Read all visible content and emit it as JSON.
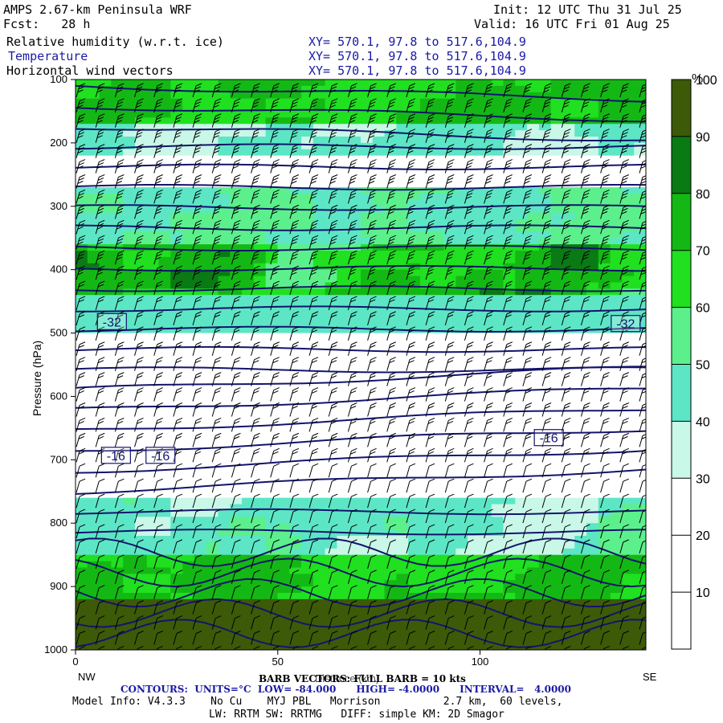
{
  "header": {
    "model": "AMPS 2.67-km Peninsula WRF",
    "fcst": "Fcst:   28 h",
    "init": "Init: 12 UTC Thu 31 Jul 25",
    "valid": "Valid: 16 UTC Fri 01 Aug 25",
    "fields": [
      {
        "label": "Relative humidity (w.r.t. ice)",
        "xy": "XY= 570.1, 97.8 to 517.6,104.9"
      },
      {
        "label": "Temperature",
        "xy": "XY= 570.1, 97.8 to 517.6,104.9"
      },
      {
        "label": "Horizontal wind vectors",
        "xy": "XY= 570.1, 97.8 to 517.6,104.9"
      }
    ]
  },
  "chart_data": {
    "type": "heatmap",
    "ylabel": "Pressure (hPa)",
    "xlabel": "Distance (km)",
    "x_left_label": "NW",
    "x_right_label": "SE",
    "xlim": [
      0,
      141
    ],
    "ylim": [
      1000,
      100
    ],
    "x_ticks": [
      0,
      50,
      100
    ],
    "y_ticks": [
      100,
      200,
      300,
      400,
      500,
      600,
      700,
      800,
      900,
      1000
    ],
    "colorbar": {
      "unit": "%",
      "ticks": [
        10,
        20,
        30,
        40,
        50,
        60,
        70,
        80,
        90,
        100
      ],
      "colors": [
        "#ffffff",
        "#ffffff",
        "#ffffff",
        "#c9f7e8",
        "#5ce6c6",
        "#5cf08c",
        "#20e020",
        "#14b814",
        "#0a7a14",
        "#3d5a08"
      ]
    },
    "humidity_bands": [
      {
        "p": [
          100,
          175
        ],
        "rh": [
          60,
          80
        ]
      },
      {
        "p": [
          175,
          225
        ],
        "rh": [
          30,
          50
        ]
      },
      {
        "p": [
          225,
          270
        ],
        "rh": [
          20,
          30
        ]
      },
      {
        "p": [
          270,
          360
        ],
        "rh": [
          40,
          60
        ]
      },
      {
        "p": [
          360,
          440
        ],
        "rh": [
          50,
          90
        ]
      },
      {
        "p": [
          440,
          500
        ],
        "rh": [
          40,
          50
        ]
      },
      {
        "p": [
          500,
          620
        ],
        "rh": [
          20,
          30
        ]
      },
      {
        "p": [
          620,
          760
        ],
        "rh": [
          10,
          30
        ]
      },
      {
        "p": [
          760,
          850
        ],
        "rh": [
          30,
          60
        ]
      },
      {
        "p": [
          850,
          920
        ],
        "rh": [
          60,
          80
        ]
      },
      {
        "p": [
          920,
          1000
        ],
        "rh": [
          90,
          100
        ]
      }
    ],
    "temperature_contours": {
      "units": "°C",
      "low": -84,
      "high": -4,
      "interval": 4,
      "labels": [
        {
          "text": "-32",
          "x": 9,
          "p": 482
        },
        {
          "text": "-32",
          "x": 136,
          "p": 485
        },
        {
          "text": "-16",
          "x": 117,
          "p": 665
        },
        {
          "text": "-16",
          "x": 10,
          "p": 693
        },
        {
          "text": "-16",
          "x": 21,
          "p": 693
        }
      ]
    },
    "wind_barbs": {
      "reference": "FULL BARB = 10 kts"
    }
  },
  "footer": {
    "barb": "BARB VECTORS: FULL BARB = 10 kts",
    "contours": "CONTOURS:  UNITS=°C  LOW= -84.000      HIGH= -4.0000      INTERVAL=   4.0000",
    "model_info": "Model Info: V4.3.3    No Cu    MYJ PBL   Morrison          2.7 km,  60 levels,",
    "physics": "LW: RRTM SW: RRTMG   DIFF: simple KM: 2D Smagor"
  }
}
